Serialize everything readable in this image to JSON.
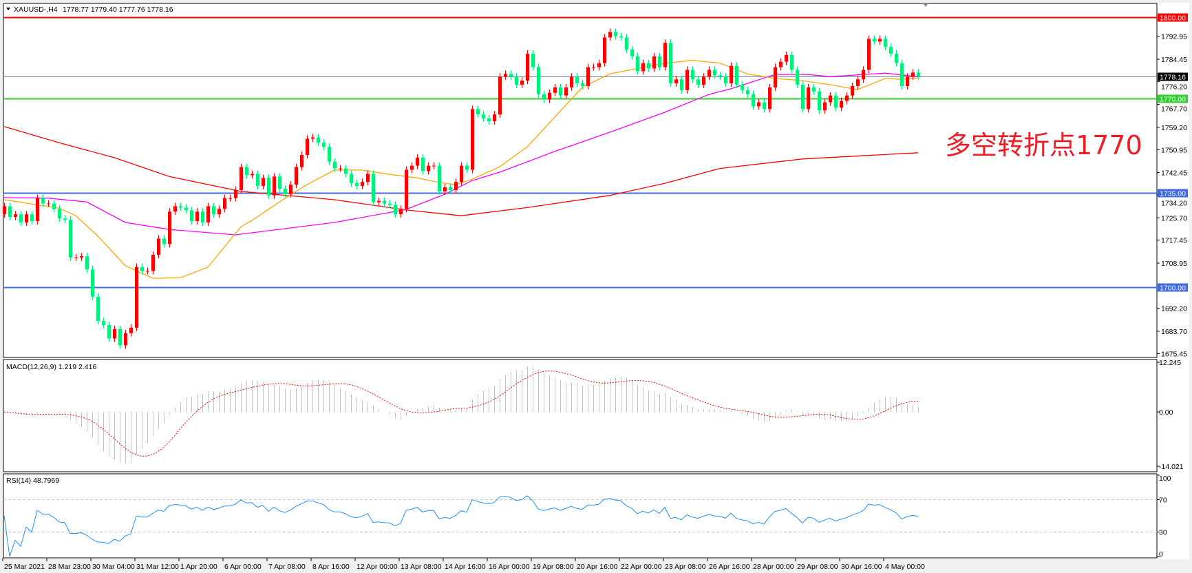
{
  "header": {
    "symbol": "XAUUSD-,H4",
    "ohlc": "1778.77 1779.40 1777.76 1778.16",
    "menu_icon": "triangle-down-icon"
  },
  "annotation": "多空转折点1770",
  "chart_data": [
    {
      "type": "candlestick",
      "panel": "price",
      "bull_color": "#FF0000",
      "bear_color": "#00F07A",
      "first_open": 1727,
      "closes": [
        1730,
        1726,
        1727,
        1724,
        1727,
        1724.5,
        1733,
        1731,
        1731,
        1729,
        1725.5,
        1725,
        1711,
        1711,
        1711.5,
        1706.6,
        1696.5,
        1687.5,
        1686,
        1681,
        1684.5,
        1678.5,
        1683,
        1685,
        1707.5,
        1706,
        1706,
        1712,
        1718,
        1716,
        1728,
        1730,
        1729.5,
        1728.5,
        1724.5,
        1728,
        1724,
        1730,
        1727,
        1729,
        1733,
        1733,
        1736,
        1744.5,
        1741.5,
        1742,
        1737.5,
        1740.5,
        1734,
        1741,
        1736.5,
        1734.5,
        1738,
        1744.5,
        1749,
        1755,
        1755.5,
        1753.5,
        1752,
        1746.5,
        1744,
        1744,
        1742,
        1738.5,
        1737.5,
        1739,
        1742,
        1731.5,
        1732,
        1731,
        1730.5,
        1727,
        1729,
        1743.5,
        1745,
        1748,
        1743,
        1745,
        1745,
        1735.5,
        1737,
        1736,
        1739,
        1745,
        1743.5,
        1766,
        1764,
        1762.5,
        1761.5,
        1764,
        1778,
        1779,
        1778,
        1775,
        1776.5,
        1786.5,
        1781.5,
        1771.5,
        1769.5,
        1772,
        1774,
        1771,
        1774,
        1778,
        1775.5,
        1774.5,
        1781.5,
        1781.5,
        1783,
        1792.5,
        1794.5,
        1793,
        1792.5,
        1788,
        1785.5,
        1780,
        1783,
        1781,
        1785.5,
        1781.5,
        1790.5,
        1775.5,
        1777,
        1773,
        1780.5,
        1777,
        1775,
        1778,
        1780.5,
        1778.5,
        1778,
        1775.5,
        1782,
        1775,
        1773,
        1771.5,
        1767,
        1768.5,
        1766,
        1774,
        1781.5,
        1783.5,
        1786,
        1780.5,
        1775,
        1766,
        1774,
        1772.5,
        1765.5,
        1768.5,
        1771,
        1766.5,
        1769,
        1771,
        1774.5,
        1777,
        1780.5,
        1792,
        1791,
        1792,
        1789,
        1786.5,
        1783,
        1774.5,
        1778,
        1779.5,
        1778.16
      ],
      "ylim": [
        1674,
        1805.1
      ],
      "y_ticks": [
        "1792.95",
        "1784.45",
        "1776.20",
        "1767.70",
        "1759.20",
        "1750.95",
        "1742.45",
        "1734.20",
        "1725.70",
        "1717.45",
        "1708.95",
        "1692.20",
        "1683.70",
        "1675.45"
      ],
      "levels": [
        {
          "value": 1800,
          "label": "1800.00",
          "color": "#FF0000"
        },
        {
          "value": 1778.16,
          "label": "1778.16",
          "color": "#778899",
          "label_bg": "#000000"
        },
        {
          "value": 1770,
          "label": "1770.00",
          "color": "#32CD32"
        },
        {
          "value": 1735,
          "label": "1735.00",
          "color": "#4169E1"
        },
        {
          "value": 1700,
          "label": "1700.00",
          "color": "#4169E1"
        }
      ],
      "moving_averages": [
        {
          "color": "#FF0000",
          "points": [
            [
              0,
              1759.5
            ],
            [
              10,
              1753.5
            ],
            [
              20,
              1748
            ],
            [
              30,
              1741
            ],
            [
              43,
              1735.5
            ],
            [
              60,
              1732.4
            ],
            [
              73,
              1728.6
            ],
            [
              83,
              1726.5
            ],
            [
              95,
              1729.5
            ],
            [
              110,
              1734
            ],
            [
              120,
              1738.5
            ],
            [
              130,
              1744
            ],
            [
              145,
              1747.5
            ],
            [
              166,
              1749.8
            ]
          ]
        },
        {
          "color": "#FF00FF",
          "points": [
            [
              0,
              1733.2
            ],
            [
              8,
              1733
            ],
            [
              15,
              1731.6
            ],
            [
              22,
              1724
            ],
            [
              30,
              1721.4
            ],
            [
              42,
              1719.4
            ],
            [
              60,
              1724
            ],
            [
              73,
              1728.8
            ],
            [
              80,
              1734.4
            ],
            [
              85,
              1739.5
            ],
            [
              90,
              1742.6
            ],
            [
              100,
              1750.3
            ],
            [
              110,
              1757.4
            ],
            [
              120,
              1764.8
            ],
            [
              128,
              1771.4
            ],
            [
              132,
              1773.5
            ],
            [
              140,
              1778.8
            ],
            [
              146,
              1778.8
            ],
            [
              150,
              1778
            ],
            [
              160,
              1779.3
            ],
            [
              166,
              1778
            ]
          ]
        },
        {
          "color": "#FFA500",
          "points": [
            [
              0,
              1732.4
            ],
            [
              10,
              1729.3
            ],
            [
              13,
              1726.5
            ],
            [
              17,
              1719
            ],
            [
              22,
              1708
            ],
            [
              27,
              1703.3
            ],
            [
              32,
              1703.5
            ],
            [
              37,
              1707.4
            ],
            [
              43,
              1722.4
            ],
            [
              45,
              1724.7
            ],
            [
              50,
              1731.6
            ],
            [
              55,
              1738
            ],
            [
              60,
              1743.4
            ],
            [
              65,
              1743.4
            ],
            [
              70,
              1741.8
            ],
            [
              75,
              1740.5
            ],
            [
              79,
              1738.8
            ],
            [
              82,
              1738
            ],
            [
              85,
              1740
            ],
            [
              90,
              1744.6
            ],
            [
              95,
              1752
            ],
            [
              100,
              1763
            ],
            [
              105,
              1774
            ],
            [
              110,
              1779
            ],
            [
              115,
              1781
            ],
            [
              120,
              1783
            ],
            [
              125,
              1784
            ],
            [
              130,
              1783
            ],
            [
              135,
              1779
            ],
            [
              140,
              1777.3
            ],
            [
              145,
              1776.5
            ],
            [
              150,
              1775
            ],
            [
              155,
              1773.2
            ],
            [
              160,
              1777.3
            ],
            [
              163,
              1777
            ],
            [
              166,
              1777.5
            ]
          ]
        }
      ],
      "x_labels": [
        "25 Mar 2021",
        "28 Mar 23:00",
        "30 Mar 04:00",
        "31 Mar 12:00",
        "1 Apr 20:00",
        "6 Apr 00:00",
        "7 Apr 08:00",
        "8 Apr 16:00",
        "12 Apr 00:00",
        "13 Apr 08:00",
        "14 Apr 16:00",
        "16 Apr 00:00",
        "19 Apr 08:00",
        "20 Apr 16:00",
        "22 Apr 00:00",
        "23 Apr 08:00",
        "26 Apr 16:00",
        "28 Apr 00:00",
        "29 Apr 08:00",
        "30 Apr 16:00",
        "4 May 00:00"
      ]
    },
    {
      "type": "bar",
      "panel": "macd",
      "title": "MACD(12,26,9) 1.219 2.416",
      "params": [
        12,
        26,
        9
      ],
      "histogram_color": "#C0C0C0",
      "signal_color": "#FF0000",
      "ylim": [
        -14.021,
        12.245
      ],
      "y_ticks": [
        "12.245",
        "0.00",
        "-14.021"
      ]
    },
    {
      "type": "line",
      "panel": "rsi",
      "title": "RSI(14) 48.7969",
      "period": 14,
      "color": "#1E90FF",
      "ylim": [
        0,
        100
      ],
      "levels": [
        70,
        30
      ],
      "y_ticks": [
        "100",
        "70",
        "30",
        "0"
      ]
    }
  ]
}
